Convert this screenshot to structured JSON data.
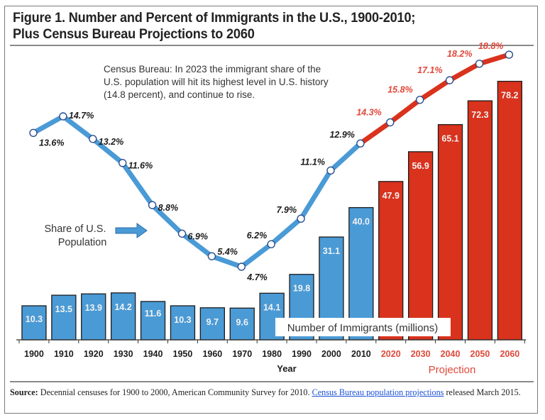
{
  "title_line1": "Figure 1. Number and Percent of Immigrants in the U.S., 1900-2010;",
  "title_line2": "Plus Census Bureau Projections to 2060",
  "note_line1": "Census Bureau: In 2023 the immigrant share of the",
  "note_line2": "U.S. population will hit its highest level in U.S. history",
  "note_line3": "(14.8 percent), and continue to rise.",
  "source": {
    "label": "Source:",
    "text": " Decennial censuses for 1900 to 2000, American Community Survey for 2010. ",
    "link": "Census Bureau population projections",
    "text_after": " released March 2015."
  },
  "colors": {
    "historical": "#4a9ad6",
    "projection": "#d9321d",
    "projection_label": "#e0483a",
    "text": "#222222"
  },
  "chart_data": {
    "type": "bar+line",
    "title": "Figure 1. Number and Percent of Immigrants in the U.S., 1900-2010; Plus Census Bureau Projections to 2060",
    "xlabel": "Year",
    "projection_label": "Projection",
    "categories": [
      "1900",
      "1910",
      "1920",
      "1930",
      "1940",
      "1950",
      "1960",
      "1970",
      "1980",
      "1990",
      "2000",
      "2010",
      "2020",
      "2030",
      "2040",
      "2050",
      "2060"
    ],
    "projected": [
      false,
      false,
      false,
      false,
      false,
      false,
      false,
      false,
      false,
      false,
      false,
      false,
      true,
      true,
      true,
      true,
      true
    ],
    "series": [
      {
        "name": "Number of Immigrants (millions)",
        "type": "bar",
        "values": [
          10.3,
          13.5,
          13.9,
          14.2,
          11.6,
          10.3,
          9.7,
          9.6,
          14.1,
          19.8,
          31.1,
          40.0,
          47.9,
          56.9,
          65.1,
          72.3,
          78.2
        ],
        "labels": [
          "10.3",
          "13.5",
          "13.9",
          "14.2",
          "11.6",
          "10.3",
          "9.7",
          "9.6",
          "14.1",
          "19.8",
          "31.1",
          "40.0",
          "47.9",
          "56.9",
          "65.1",
          "72.3",
          "78.2"
        ]
      },
      {
        "name": "Share of U.S. Population",
        "type": "line",
        "values": [
          13.6,
          14.7,
          13.2,
          11.6,
          8.8,
          6.9,
          5.4,
          4.7,
          6.2,
          7.9,
          11.1,
          12.9,
          14.3,
          15.8,
          17.1,
          18.2,
          18.8
        ],
        "labels": [
          "13.6%",
          "14.7%",
          "13.2%",
          "11.6%",
          "8.8%",
          "6.9%",
          "5.4%",
          "4.7%",
          "6.2%",
          "7.9%",
          "11.1%",
          "12.9%",
          "14.3%",
          "15.8%",
          "17.1%",
          "18.2%",
          "18.8%"
        ]
      }
    ],
    "bar_legend": "Number of Immigrants (millions)",
    "line_legend_line1": "Share of U.S.",
    "line_legend_line2": "Population",
    "grid": false
  }
}
